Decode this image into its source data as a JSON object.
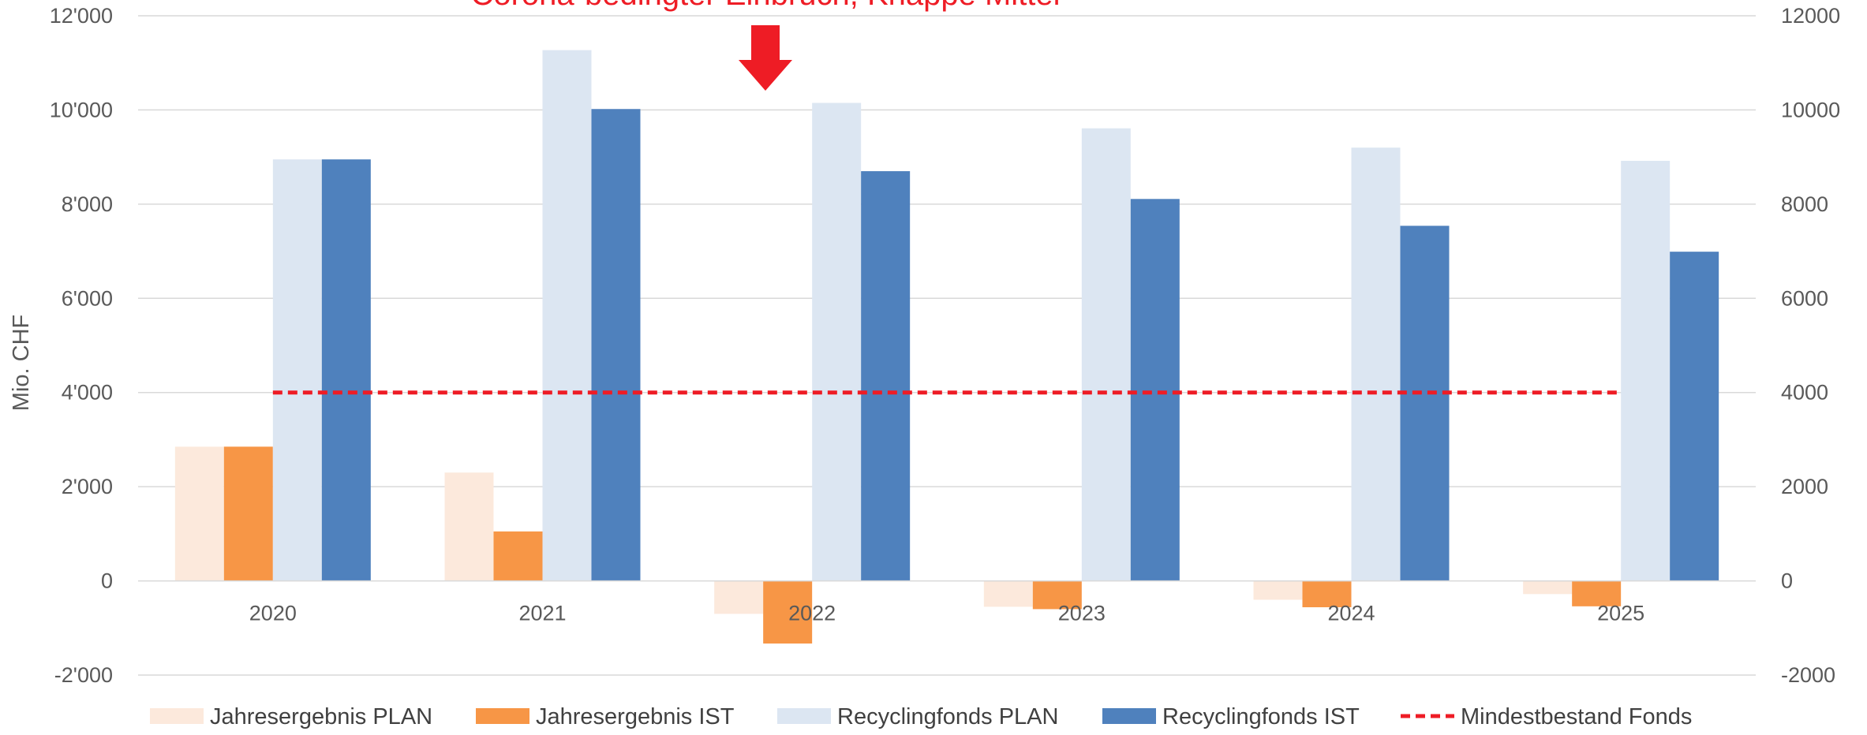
{
  "chart_data": {
    "type": "bar",
    "categories": [
      "2020",
      "2021",
      "2022",
      "2023",
      "2024",
      "2025"
    ],
    "series": [
      {
        "name": "Jahresergebnis PLAN",
        "kind": "bar",
        "color": "#fce9dc",
        "values": [
          2850,
          2300,
          -700,
          -550,
          -400,
          -280
        ]
      },
      {
        "name": "Jahresergebnis IST",
        "kind": "bar",
        "color": "#f79646",
        "values": [
          2850,
          1050,
          -1330,
          -600,
          -560,
          -540
        ]
      },
      {
        "name": "Recyclingfonds PLAN",
        "kind": "bar",
        "color": "#dce6f2",
        "values": [
          8950,
          11270,
          10150,
          9610,
          9200,
          8920
        ]
      },
      {
        "name": "Recyclingfonds IST",
        "kind": "bar",
        "color": "#4f81bd",
        "values": [
          8950,
          10020,
          8700,
          8110,
          7540,
          6990
        ]
      },
      {
        "name": "Mindestbestand Fonds",
        "kind": "line",
        "style": "dashed",
        "color": "#ee1c25",
        "values": [
          4000,
          4000,
          4000,
          4000,
          4000,
          4000
        ]
      }
    ],
    "ylabel": "Mio. CHF",
    "ylim": [
      -2000,
      12000
    ],
    "yticks": [
      {
        "value": 12000,
        "left": "12'000",
        "right": "12000"
      },
      {
        "value": 10000,
        "left": "10'000",
        "right": "10000"
      },
      {
        "value": 8000,
        "left": "8'000",
        "right": "8000"
      },
      {
        "value": 6000,
        "left": "6'000",
        "right": "6000"
      },
      {
        "value": 4000,
        "left": "4'000",
        "right": "4000"
      },
      {
        "value": 2000,
        "left": "2'000",
        "right": "2000"
      },
      {
        "value": 0,
        "left": "0",
        "right": "0"
      },
      {
        "value": -2000,
        "left": "-2'000",
        "right": "-2000"
      }
    ],
    "grid": true,
    "legend_position": "bottom",
    "annotation": {
      "text": "Corona-bedingter Einbruch, Knappe Mittel",
      "category": "2022",
      "color": "#ee1c25",
      "icon": "down-arrow-icon"
    }
  }
}
